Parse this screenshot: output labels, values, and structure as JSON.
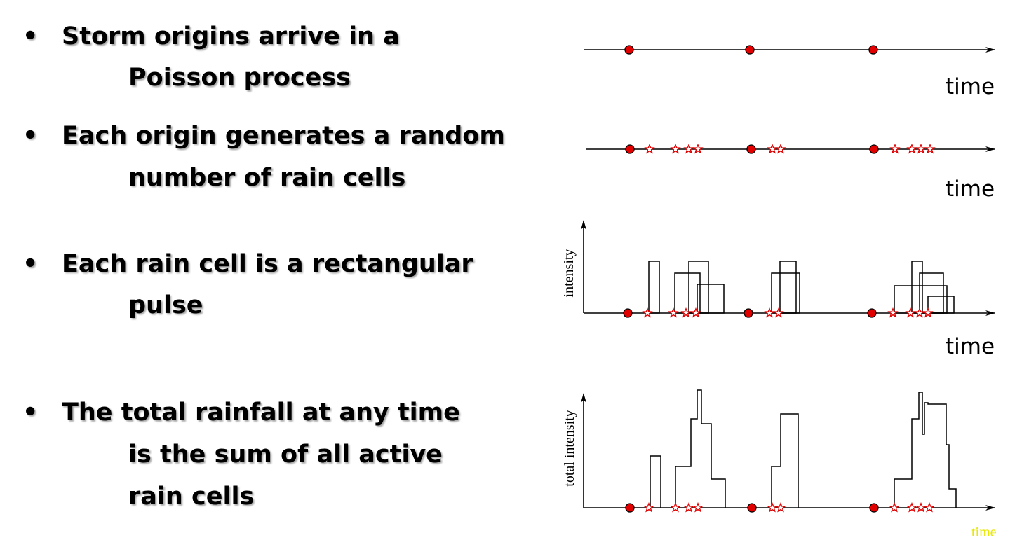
{
  "bullets": [
    {
      "lines": [
        "Storm origins arrive in a",
        "Poisson process"
      ]
    },
    {
      "lines": [
        "Each origin generates a random",
        "number of rain cells"
      ]
    },
    {
      "lines": [
        "Each rain cell is a rectangular",
        "pulse"
      ]
    },
    {
      "lines": [
        "The total rainfall at any time",
        "is the sum of all active",
        "rain cells"
      ]
    }
  ],
  "diagrams": [
    {
      "x_label": "time"
    },
    {
      "x_label": "time"
    },
    {
      "y_label": "intensity",
      "x_label": "time"
    },
    {
      "y_label": "total intensity",
      "x_label": "time"
    }
  ]
}
